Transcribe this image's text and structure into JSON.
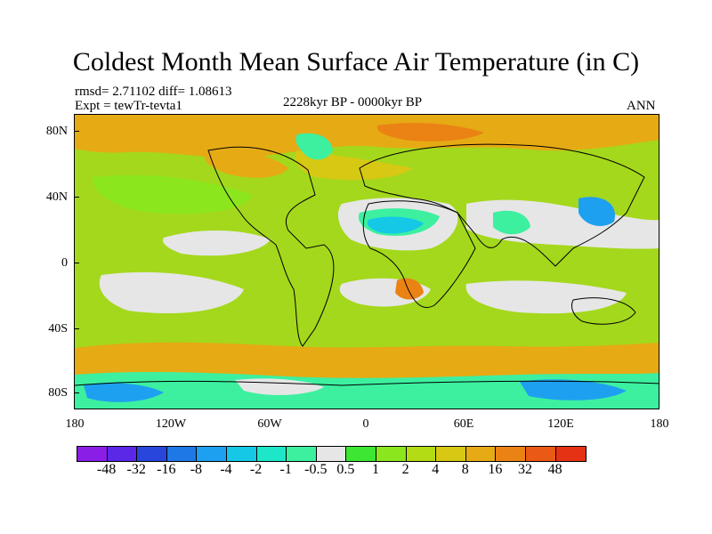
{
  "title": "Coldest Month Mean Surface Air Temperature (in C)",
  "stats": "rmsd= 2.71102 diff= 1.08613",
  "expt": "Expt = tewTr-tevta1",
  "period": "2228kyr BP - 0000kyr BP",
  "season": "ANN",
  "y_ticks": [
    "80N",
    "40N",
    "0",
    "40S",
    "80S"
  ],
  "x_ticks": [
    "180",
    "120W",
    "60W",
    "0",
    "60E",
    "120E",
    "180"
  ],
  "colorbar": {
    "colors": [
      "#8a1ee6",
      "#5a28e6",
      "#2846dc",
      "#1e78e6",
      "#1ea0f0",
      "#14c8e6",
      "#1ee6c8",
      "#3cf0a0",
      "#e6e6e6",
      "#3ce632",
      "#8ce61e",
      "#b4dc14",
      "#d7c814",
      "#e6aa14",
      "#eb8214",
      "#eb5a14",
      "#e63214"
    ],
    "labels": [
      "-48",
      "-32",
      "-16",
      "-8",
      "-4",
      "-2",
      "-1",
      "-0.5",
      "0.5",
      "1",
      "2",
      "4",
      "8",
      "16",
      "32",
      "48"
    ]
  }
}
